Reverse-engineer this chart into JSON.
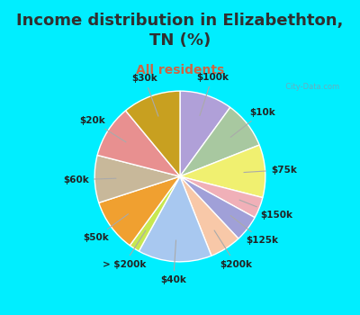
{
  "title": "Income distribution in Elizabethton,\nTN (%)",
  "subtitle": "All residents",
  "labels": [
    "$100k",
    "$10k",
    "$75k",
    "$150k",
    "$125k",
    "$200k",
    "$40k",
    "> $200k",
    "$50k",
    "$60k",
    "$20k",
    "$30k"
  ],
  "values": [
    10,
    9,
    10,
    4,
    5,
    6,
    14,
    2,
    10,
    9,
    10,
    11
  ],
  "colors": [
    "#b0a0d8",
    "#a8c8a0",
    "#f0f070",
    "#f0b0b8",
    "#a0a0d8",
    "#f8c8a8",
    "#a8c8f0",
    "#c8e850",
    "#f0a030",
    "#c8b89a",
    "#e89090",
    "#c8a020"
  ],
  "bg_color": "#00eeff",
  "chart_bg_color": "#d8efe0",
  "watermark": "  City-Data.com",
  "title_color": "#303030",
  "subtitle_color": "#cc6644",
  "title_fontsize": 13,
  "subtitle_fontsize": 10,
  "label_fontsize": 7.5,
  "wedge_linewidth": 1.0,
  "wedge_edgecolor": "#ffffff"
}
